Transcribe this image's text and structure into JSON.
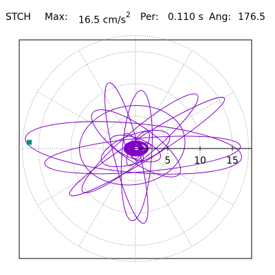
{
  "header": {
    "station": "STCH",
    "max_label": "Max:",
    "max_value": "16.5 cm/s",
    "max_exp": "2",
    "per_label": "Per:",
    "per_value": "0.110 s",
    "ang_label": "Ang:",
    "ang_value": "176.5"
  },
  "colors": {
    "trace": "#8000c8",
    "grid": "#8c8c8c",
    "axis": "#000000",
    "marker": "#009070"
  },
  "chart_data": {
    "type": "polar particle-motion plot",
    "title": "",
    "xlabel": "",
    "ylabel": "",
    "radial_max": 17.5,
    "rings": [
      5,
      10,
      15
    ],
    "tick_labels": [
      "5",
      "10",
      "15"
    ],
    "spokes_deg": [
      0,
      30,
      60,
      90,
      120,
      150,
      180,
      210,
      240,
      270,
      300,
      330
    ],
    "max_point": {
      "r": 16.5,
      "angle_deg": 176.5
    },
    "trace_loops": [
      {
        "r": 16.8,
        "minor": 3.8,
        "angle_deg": 175,
        "cx": -0.3,
        "cy": 0.1
      },
      {
        "r": 15.2,
        "minor": 2.6,
        "angle_deg": 5,
        "cx": 1.1,
        "cy": -1.0
      },
      {
        "r": 8.2,
        "minor": 6.1,
        "angle_deg": 8,
        "cx": -0.5,
        "cy": 0.5
      },
      {
        "r": 11.6,
        "minor": 2.2,
        "angle_deg": 40,
        "cx": 0.7,
        "cy": 0.8
      },
      {
        "r": 11.2,
        "minor": 2.0,
        "angle_deg": 104,
        "cx": -1.4,
        "cy": -0.7
      },
      {
        "r": 10.1,
        "minor": 2.3,
        "angle_deg": 86,
        "cx": 0.2,
        "cy": -1.1
      },
      {
        "r": 8.2,
        "minor": 2.7,
        "angle_deg": 145,
        "cx": 0.1,
        "cy": 0.8
      },
      {
        "r": 14.1,
        "minor": 1.8,
        "angle_deg": 32,
        "cx": 1.8,
        "cy": 0.3
      },
      {
        "r": 5.6,
        "minor": 2.2,
        "angle_deg": 20,
        "cx": 0.0,
        "cy": 0.0
      },
      {
        "r": 4.1,
        "minor": 1.6,
        "angle_deg": 160,
        "cx": 0.0,
        "cy": 0.0
      },
      {
        "r": 3.0,
        "minor": 1.1,
        "angle_deg": 60,
        "cx": 0.4,
        "cy": 0.0
      },
      {
        "r": 2.5,
        "minor": 1.0,
        "angle_deg": 120,
        "cx": -0.3,
        "cy": 0.1
      },
      {
        "r": 2.1,
        "minor": 0.7,
        "angle_deg": 10,
        "cx": 0.3,
        "cy": 0.1
      },
      {
        "r": 1.6,
        "minor": 0.8,
        "angle_deg": 90,
        "cx": 0.0,
        "cy": 0.0
      }
    ]
  }
}
